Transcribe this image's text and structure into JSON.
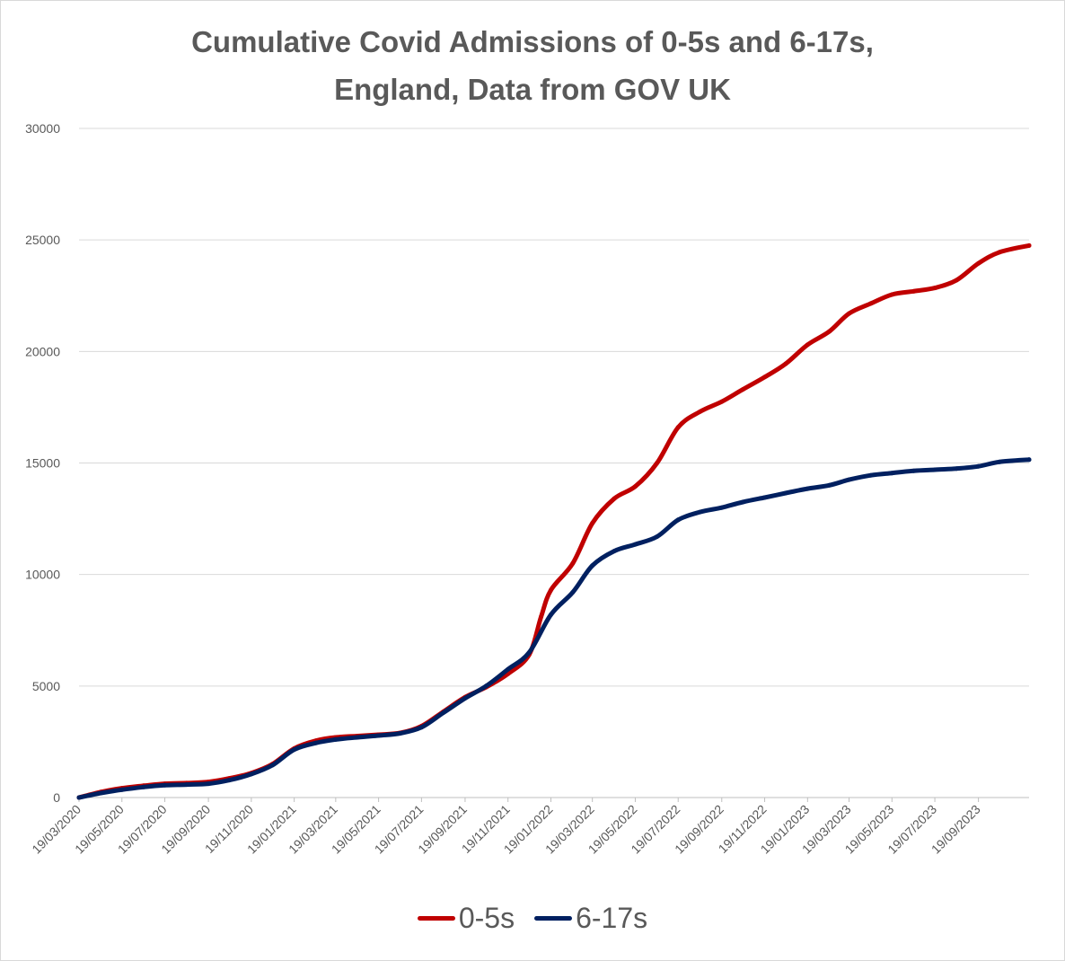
{
  "chart_data": {
    "type": "line",
    "title_lines": [
      "Cumulative Covid Admissions of 0-5s and 6-17s,",
      "England, Data from GOV UK"
    ],
    "xlabel": "",
    "ylabel": "",
    "ylim": [
      0,
      30000
    ],
    "yticks": [
      "0",
      "5000",
      "10000",
      "15000",
      "20000",
      "25000",
      "30000"
    ],
    "xlim": [
      "2020-03-19",
      "2023-11-30"
    ],
    "xticks": [
      {
        "date": "2020-03-19",
        "label": "19/03/2020"
      },
      {
        "date": "2020-05-19",
        "label": "19/05/2020"
      },
      {
        "date": "2020-07-19",
        "label": "19/07/2020"
      },
      {
        "date": "2020-09-19",
        "label": "19/09/2020"
      },
      {
        "date": "2020-11-19",
        "label": "19/11/2020"
      },
      {
        "date": "2021-01-19",
        "label": "19/01/2021"
      },
      {
        "date": "2021-03-19",
        "label": "19/03/2021"
      },
      {
        "date": "2021-05-19",
        "label": "19/05/2021"
      },
      {
        "date": "2021-07-19",
        "label": "19/07/2021"
      },
      {
        "date": "2021-09-19",
        "label": "19/09/2021"
      },
      {
        "date": "2021-11-19",
        "label": "19/11/2021"
      },
      {
        "date": "2022-01-19",
        "label": "19/01/2022"
      },
      {
        "date": "2022-03-19",
        "label": "19/03/2022"
      },
      {
        "date": "2022-05-19",
        "label": "19/05/2022"
      },
      {
        "date": "2022-07-19",
        "label": "19/07/2022"
      },
      {
        "date": "2022-09-19",
        "label": "19/09/2022"
      },
      {
        "date": "2022-11-19",
        "label": "19/11/2022"
      },
      {
        "date": "2023-01-19",
        "label": "19/01/2023"
      },
      {
        "date": "2023-03-19",
        "label": "19/03/2023"
      },
      {
        "date": "2023-05-19",
        "label": "19/05/2023"
      },
      {
        "date": "2023-07-19",
        "label": "19/07/2023"
      },
      {
        "date": "2023-09-19",
        "label": "19/09/2023"
      }
    ],
    "grid": true,
    "legend_position": "bottom",
    "series": [
      {
        "name": "0-5s",
        "color": "#c00000",
        "points": [
          [
            "2020-03-19",
            0
          ],
          [
            "2020-04-19",
            250
          ],
          [
            "2020-05-19",
            420
          ],
          [
            "2020-06-19",
            530
          ],
          [
            "2020-07-19",
            620
          ],
          [
            "2020-08-19",
            650
          ],
          [
            "2020-09-19",
            700
          ],
          [
            "2020-10-19",
            860
          ],
          [
            "2020-11-19",
            1100
          ],
          [
            "2020-12-19",
            1500
          ],
          [
            "2021-01-19",
            2200
          ],
          [
            "2021-02-19",
            2550
          ],
          [
            "2021-03-19",
            2700
          ],
          [
            "2021-04-19",
            2760
          ],
          [
            "2021-05-19",
            2820
          ],
          [
            "2021-06-19",
            2900
          ],
          [
            "2021-07-19",
            3200
          ],
          [
            "2021-08-19",
            3850
          ],
          [
            "2021-09-19",
            4500
          ],
          [
            "2021-10-19",
            4950
          ],
          [
            "2021-11-19",
            5550
          ],
          [
            "2021-12-19",
            6400
          ],
          [
            "2022-01-05",
            8100
          ],
          [
            "2022-01-19",
            9300
          ],
          [
            "2022-02-19",
            10500
          ],
          [
            "2022-03-19",
            12300
          ],
          [
            "2022-04-19",
            13400
          ],
          [
            "2022-05-19",
            13950
          ],
          [
            "2022-06-19",
            15000
          ],
          [
            "2022-07-19",
            16600
          ],
          [
            "2022-08-19",
            17300
          ],
          [
            "2022-09-19",
            17750
          ],
          [
            "2022-10-19",
            18300
          ],
          [
            "2022-11-19",
            18850
          ],
          [
            "2022-12-19",
            19450
          ],
          [
            "2023-01-19",
            20300
          ],
          [
            "2023-02-19",
            20900
          ],
          [
            "2023-03-19",
            21700
          ],
          [
            "2023-04-19",
            22150
          ],
          [
            "2023-05-19",
            22550
          ],
          [
            "2023-06-19",
            22700
          ],
          [
            "2023-07-19",
            22850
          ],
          [
            "2023-08-19",
            23200
          ],
          [
            "2023-09-19",
            23950
          ],
          [
            "2023-10-19",
            24450
          ],
          [
            "2023-11-30",
            24750
          ]
        ]
      },
      {
        "name": "6-17s",
        "color": "#002060",
        "points": [
          [
            "2020-03-19",
            0
          ],
          [
            "2020-04-19",
            200
          ],
          [
            "2020-05-19",
            350
          ],
          [
            "2020-06-19",
            470
          ],
          [
            "2020-07-19",
            550
          ],
          [
            "2020-08-19",
            580
          ],
          [
            "2020-09-19",
            620
          ],
          [
            "2020-10-19",
            780
          ],
          [
            "2020-11-19",
            1050
          ],
          [
            "2020-12-19",
            1450
          ],
          [
            "2021-01-19",
            2150
          ],
          [
            "2021-02-19",
            2450
          ],
          [
            "2021-03-19",
            2600
          ],
          [
            "2021-04-19",
            2700
          ],
          [
            "2021-05-19",
            2780
          ],
          [
            "2021-06-19",
            2880
          ],
          [
            "2021-07-19",
            3150
          ],
          [
            "2021-08-19",
            3800
          ],
          [
            "2021-09-19",
            4450
          ],
          [
            "2021-10-19",
            5000
          ],
          [
            "2021-11-19",
            5750
          ],
          [
            "2021-12-19",
            6500
          ],
          [
            "2022-01-19",
            8200
          ],
          [
            "2022-02-19",
            9200
          ],
          [
            "2022-03-19",
            10400
          ],
          [
            "2022-04-19",
            11050
          ],
          [
            "2022-05-19",
            11350
          ],
          [
            "2022-06-19",
            11700
          ],
          [
            "2022-07-19",
            12450
          ],
          [
            "2022-08-19",
            12800
          ],
          [
            "2022-09-19",
            13000
          ],
          [
            "2022-10-19",
            13250
          ],
          [
            "2022-11-19",
            13450
          ],
          [
            "2022-12-19",
            13650
          ],
          [
            "2023-01-19",
            13850
          ],
          [
            "2023-02-19",
            14000
          ],
          [
            "2023-03-19",
            14250
          ],
          [
            "2023-04-19",
            14450
          ],
          [
            "2023-05-19",
            14550
          ],
          [
            "2023-06-19",
            14650
          ],
          [
            "2023-07-19",
            14700
          ],
          [
            "2023-08-19",
            14750
          ],
          [
            "2023-09-19",
            14850
          ],
          [
            "2023-10-19",
            15050
          ],
          [
            "2023-11-30",
            15150
          ]
        ]
      }
    ]
  }
}
